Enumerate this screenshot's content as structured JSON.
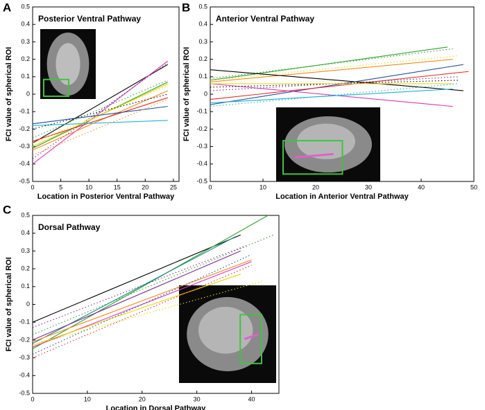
{
  "chart_data": [
    {
      "type": "line",
      "panel_label": "A",
      "title": "Posterior Ventral Pathway",
      "x_label": "Location in Posterior Ventral Pathway",
      "y_label": "FCI value of spherical ROI",
      "xlim": [
        0,
        26
      ],
      "ylim": [
        -0.5,
        0.5
      ],
      "xticks": [
        0,
        5,
        10,
        15,
        20,
        25
      ],
      "yticks": [
        -0.5,
        -0.4,
        -0.3,
        -0.2,
        -0.1,
        0,
        0.1,
        0.2,
        0.3,
        0.4,
        0.5
      ],
      "series": [
        {
          "color": "#000000",
          "dashed": false,
          "x": [
            0,
            24
          ],
          "values": [
            -0.28,
            0.17
          ]
        },
        {
          "color": "#d63ab8",
          "dashed": false,
          "x": [
            0,
            24
          ],
          "values": [
            -0.4,
            0.19
          ]
        },
        {
          "color": "#7a2a8c",
          "dashed": true,
          "x": [
            0,
            24
          ],
          "values": [
            -0.37,
            0.18
          ]
        },
        {
          "color": "#2aa02a",
          "dashed": false,
          "x": [
            0,
            24
          ],
          "values": [
            -0.31,
            0.07
          ]
        },
        {
          "color": "#e8d800",
          "dashed": false,
          "x": [
            0,
            24
          ],
          "values": [
            -0.3,
            0.06
          ]
        },
        {
          "color": "#f08a1c",
          "dashed": false,
          "x": [
            0,
            24
          ],
          "values": [
            -0.32,
            0.02
          ]
        },
        {
          "color": "#e02828",
          "dashed": false,
          "x": [
            0,
            24
          ],
          "values": [
            -0.27,
            -0.02
          ]
        },
        {
          "color": "#1f4e9c",
          "dashed": false,
          "x": [
            0,
            24
          ],
          "values": [
            -0.17,
            -0.07
          ]
        },
        {
          "color": "#1cb0d0",
          "dashed": false,
          "x": [
            0,
            24
          ],
          "values": [
            -0.18,
            -0.15
          ]
        },
        {
          "color": "#f08a1c",
          "dashed": true,
          "x": [
            0,
            24
          ],
          "values": [
            -0.35,
            -0.03
          ]
        },
        {
          "color": "#e8d800",
          "dashed": true,
          "x": [
            0,
            24
          ],
          "values": [
            -0.28,
            0.05
          ]
        },
        {
          "color": "#000000",
          "dashed": true,
          "x": [
            0,
            24
          ],
          "values": [
            -0.2,
            0.0
          ]
        },
        {
          "color": "#2aa02a",
          "dashed": true,
          "x": [
            0,
            24
          ],
          "values": [
            -0.25,
            0.08
          ]
        }
      ]
    },
    {
      "type": "line",
      "panel_label": "B",
      "title": "Anterior Ventral Pathway",
      "x_label": "Location in Anterior Ventral Pathway",
      "y_label": "FCI value of spherical ROI",
      "xlim": [
        0,
        50
      ],
      "ylim": [
        -0.5,
        0.5
      ],
      "xticks": [
        0,
        10,
        20,
        30,
        40,
        50
      ],
      "yticks": [
        -0.5,
        -0.4,
        -0.3,
        -0.2,
        -0.1,
        0,
        0.1,
        0.2,
        0.3,
        0.4,
        0.5
      ],
      "series": [
        {
          "color": "#2aa02a",
          "dashed": false,
          "x": [
            0,
            45
          ],
          "values": [
            0.08,
            0.27
          ]
        },
        {
          "color": "#2aa02a",
          "dashed": true,
          "x": [
            0,
            46
          ],
          "values": [
            0.09,
            0.26
          ]
        },
        {
          "color": "#f08a1c",
          "dashed": false,
          "x": [
            0,
            46
          ],
          "values": [
            0.07,
            0.2
          ]
        },
        {
          "color": "#e8d800",
          "dashed": true,
          "x": [
            0,
            47
          ],
          "values": [
            0.08,
            0.22
          ]
        },
        {
          "color": "#000000",
          "dashed": false,
          "x": [
            0,
            48
          ],
          "values": [
            0.14,
            0.02
          ]
        },
        {
          "color": "#1f4e9c",
          "dashed": false,
          "x": [
            0,
            48
          ],
          "values": [
            -0.06,
            0.17
          ]
        },
        {
          "color": "#e02828",
          "dashed": false,
          "x": [
            0,
            49
          ],
          "values": [
            -0.03,
            0.13
          ]
        },
        {
          "color": "#d63ab8",
          "dashed": false,
          "x": [
            0,
            46
          ],
          "values": [
            0.06,
            -0.07
          ]
        },
        {
          "color": "#1cb0d0",
          "dashed": false,
          "x": [
            0,
            46
          ],
          "values": [
            -0.05,
            0.03
          ]
        },
        {
          "color": "#1cb0d0",
          "dashed": true,
          "x": [
            0,
            47
          ],
          "values": [
            -0.07,
            0.06
          ]
        },
        {
          "color": "#7a2a8c",
          "dashed": true,
          "x": [
            0,
            47
          ],
          "values": [
            0.02,
            0.1
          ]
        },
        {
          "color": "#000000",
          "dashed": true,
          "x": [
            0,
            47
          ],
          "values": [
            0.04,
            0.08
          ]
        },
        {
          "color": "#e8d800",
          "dashed": false,
          "x": [
            0,
            46
          ],
          "values": [
            0.06,
            0.06
          ]
        }
      ]
    },
    {
      "type": "line",
      "panel_label": "C",
      "title": "Dorsal Pathway",
      "x_label": "Location in Dorsal Pathway",
      "y_label": "FCI value of spherical ROI",
      "xlim": [
        0,
        45
      ],
      "ylim": [
        -0.5,
        0.5
      ],
      "xticks": [
        0,
        10,
        20,
        30,
        40
      ],
      "yticks": [
        -0.5,
        -0.4,
        -0.3,
        -0.2,
        -0.1,
        0,
        0.1,
        0.2,
        0.3,
        0.4,
        0.5
      ],
      "series": [
        {
          "color": "#000000",
          "dashed": false,
          "x": [
            0,
            38
          ],
          "values": [
            -0.1,
            0.39
          ]
        },
        {
          "color": "#2aa02a",
          "dashed": false,
          "x": [
            0,
            43
          ],
          "values": [
            -0.25,
            0.5
          ]
        },
        {
          "color": "#1a8a8a",
          "dashed": false,
          "x": [
            0,
            37
          ],
          "values": [
            -0.22,
            0.38
          ]
        },
        {
          "color": "#7a2a8c",
          "dashed": false,
          "x": [
            0,
            38
          ],
          "values": [
            -0.2,
            0.3
          ]
        },
        {
          "color": "#d63ab8",
          "dashed": false,
          "x": [
            0,
            40
          ],
          "values": [
            -0.24,
            0.24
          ]
        },
        {
          "color": "#f08a1c",
          "dashed": false,
          "x": [
            0,
            40
          ],
          "values": [
            -0.21,
            0.25
          ]
        },
        {
          "color": "#e8d800",
          "dashed": false,
          "x": [
            0,
            38
          ],
          "values": [
            -0.23,
            0.17
          ]
        },
        {
          "color": "#2aa02a",
          "dashed": true,
          "x": [
            0,
            44
          ],
          "values": [
            -0.17,
            0.39
          ]
        },
        {
          "color": "#7a2a8c",
          "dashed": true,
          "x": [
            0,
            39
          ],
          "values": [
            -0.13,
            0.33
          ]
        },
        {
          "color": "#e8d800",
          "dashed": true,
          "x": [
            0,
            42
          ],
          "values": [
            -0.23,
            0.13
          ]
        },
        {
          "color": "#e02828",
          "dashed": true,
          "x": [
            0,
            40
          ],
          "values": [
            -0.3,
            0.22
          ]
        },
        {
          "color": "#1f4e9c",
          "dashed": true,
          "x": [
            0,
            40
          ],
          "values": [
            -0.28,
            0.28
          ]
        }
      ]
    }
  ]
}
